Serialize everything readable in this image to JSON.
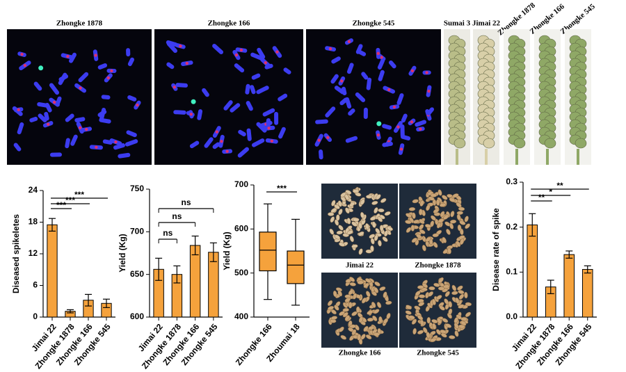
{
  "panels": {
    "micrographs": [
      "Zhongke 1878",
      "Zhongke 166",
      "Zhongke 545"
    ],
    "spikes": [
      "Sumai 3",
      "Jimai 22",
      "Zhongke 1878",
      "Zhongke 166",
      "Zhongke 545"
    ],
    "grains": [
      "Jimai 22",
      "Zhongke 1878",
      "Zhongke 166",
      "Zhongke 545"
    ]
  },
  "chart_data": [
    {
      "type": "bar",
      "y_label": "Diseased spikeletes",
      "categories": [
        "Jimai 22",
        "Zhongke 1878",
        "Zhongke 166",
        "Zhongke 545"
      ],
      "values": [
        17.5,
        1.1,
        3.2,
        2.6
      ],
      "errors": [
        1.2,
        0.3,
        1.1,
        0.8
      ],
      "color": "#f5a23c",
      "ylim": [
        0,
        24
      ],
      "yticks": [
        0,
        6,
        12,
        18,
        24
      ],
      "significance": [
        "***",
        "***",
        "***"
      ]
    },
    {
      "type": "bar",
      "y_label": "Yield (Kg)",
      "categories": [
        "Jimai 22",
        "Zhongke 1878",
        "Zhongke 166",
        "Zhongke 545"
      ],
      "values": [
        656,
        650,
        684,
        676
      ],
      "errors": [
        13,
        10,
        11,
        11
      ],
      "color": "#f5a23c",
      "ylim": [
        600,
        750
      ],
      "yticks": [
        600,
        650,
        700,
        750
      ],
      "significance": [
        "ns",
        "ns",
        "ns"
      ]
    },
    {
      "type": "box",
      "y_label": "Yield (Kg)",
      "categories": [
        "Zhongke 166",
        "Zhoumai 18"
      ],
      "min": [
        440,
        427
      ],
      "q1": [
        505,
        476
      ],
      "median": [
        552,
        518
      ],
      "q3": [
        593,
        550
      ],
      "max": [
        657,
        622
      ],
      "color": "#f5a23c",
      "ylim": [
        400,
        700
      ],
      "yticks": [
        400,
        500,
        600,
        700
      ],
      "significance": [
        "***"
      ]
    },
    {
      "type": "bar",
      "y_label": "Disease rate of spike",
      "categories": [
        "Jimai 22",
        "Zhongke 1878",
        "Zhongke 166",
        "Zhongke 545"
      ],
      "values": [
        0.205,
        0.067,
        0.139,
        0.106
      ],
      "errors": [
        0.025,
        0.015,
        0.008,
        0.008
      ],
      "color": "#f5a23c",
      "ylim": [
        0,
        0.3
      ],
      "yticks": [
        {
          "value": 0,
          "label": "0.0"
        },
        0.1,
        0.2,
        0.3
      ],
      "significance": [
        "**",
        "*",
        "**"
      ]
    }
  ]
}
